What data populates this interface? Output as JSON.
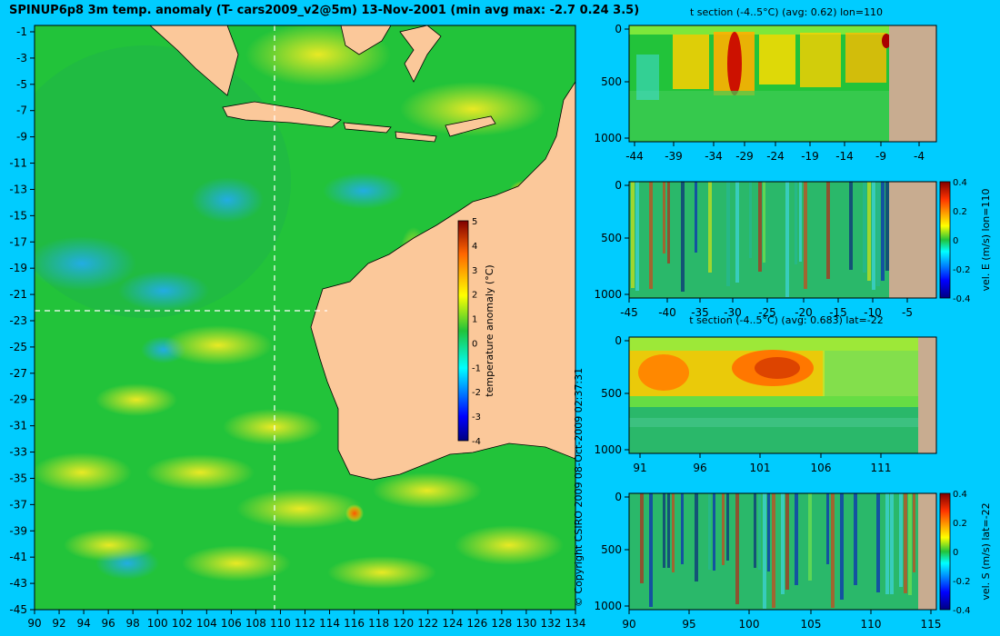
{
  "title": "SPINUP6p8 3m temp. anomaly (T- cars2009_v2@5m) 13-Nov-2001 (min avg max: -2.7 0.24 3.5)",
  "copyright": "© Copyright CSIRO 2009   08-Oct-2009 02:37:31",
  "colors": {
    "background": "#00ccff",
    "land": "#fbc89a",
    "section_land": "#c8ac90",
    "water_base": "#22c33a"
  },
  "chart_data": [
    {
      "type": "heatmap",
      "name": "map",
      "xlim": [
        90,
        135
      ],
      "ylim": [
        -45,
        0
      ],
      "x_ticks": [
        "90",
        "92",
        "94",
        "96",
        "98",
        "100",
        "102",
        "104",
        "106",
        "108",
        "110",
        "112",
        "114",
        "116",
        "118",
        "120",
        "122",
        "124",
        "126",
        "128",
        "130",
        "132",
        "134"
      ],
      "y_ticks": [
        "-1",
        "-3",
        "-5",
        "-7",
        "-9",
        "-11",
        "-13",
        "-15",
        "-17",
        "-19",
        "-21",
        "-23",
        "-25",
        "-27",
        "-29",
        "-31",
        "-33",
        "-35",
        "-37",
        "-39",
        "-41",
        "-43",
        "-45"
      ],
      "crosshair_lon": 110,
      "crosshair_lat": -22,
      "colorbar": {
        "label": "temperature anomaly (°C)",
        "range": [
          -4,
          5
        ],
        "ticks": [
          "5",
          "4",
          "3",
          "2",
          "1",
          "0",
          "-1",
          "-2",
          "-3",
          "-4"
        ]
      }
    },
    {
      "type": "heatmap",
      "name": "t-section-lon110",
      "title": "t section (-4..5°C) (avg: 0.62) lon=110",
      "x_ticks": [
        "-44",
        "-39",
        "-34",
        "-29",
        "-24",
        "-19",
        "-14",
        "-9",
        "-4"
      ],
      "y_ticks": [
        "0",
        "500",
        "1000"
      ]
    },
    {
      "type": "heatmap",
      "name": "vel-e-section-lon110",
      "x_ticks": [
        "-45",
        "-40",
        "-35",
        "-30",
        "-25",
        "-20",
        "-15",
        "-10",
        "-5"
      ],
      "y_ticks": [
        "0",
        "500",
        "1000"
      ],
      "colorbar": {
        "label": "vel. E (m/s) lon=110",
        "range": [
          -0.4,
          0.4
        ],
        "ticks": [
          "0.4",
          "0.2",
          "0",
          "-0.2",
          "-0.4"
        ]
      }
    },
    {
      "type": "heatmap",
      "name": "t-section-lat-22",
      "title": "t section (-4..5°C) (avg: 0.683) lat=-22",
      "x_ticks": [
        "91",
        "96",
        "101",
        "106",
        "111"
      ],
      "y_ticks": [
        "0",
        "500",
        "1000"
      ]
    },
    {
      "type": "heatmap",
      "name": "vel-s-section-lat-22",
      "x_ticks": [
        "90",
        "95",
        "100",
        "105",
        "110",
        "115"
      ],
      "y_ticks": [
        "0",
        "500",
        "1000"
      ],
      "colorbar": {
        "label": "vel. S (m/s) lat=-22",
        "range": [
          -0.4,
          0.4
        ],
        "ticks": [
          "0.4",
          "0.2",
          "0",
          "-0.2",
          "-0.4"
        ]
      }
    }
  ]
}
